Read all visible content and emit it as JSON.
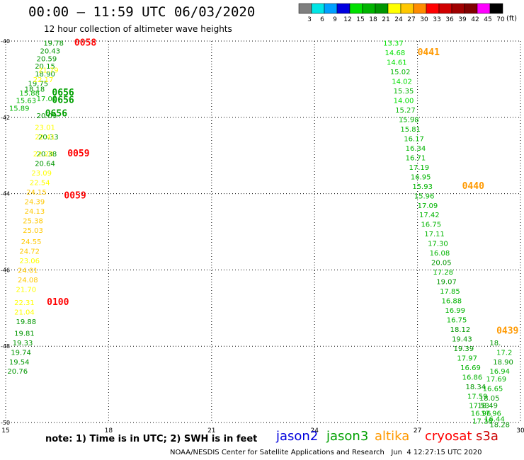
{
  "header": {
    "title": "00:00 – 11:59 UTC 06/03/2020",
    "subtitle": "12 hour collection of altimeter wave heights"
  },
  "scale": {
    "unit": "(ft)",
    "ticks": [
      "3",
      "6",
      "9",
      "12",
      "15",
      "18",
      "21",
      "24",
      "27",
      "30",
      "33",
      "36",
      "39",
      "42",
      "45",
      "70"
    ],
    "colors": [
      "#7f7f7f",
      "#00e5e5",
      "#00a0ff",
      "#0000e0",
      "#00e000",
      "#00b400",
      "#009600",
      "#ffff00",
      "#ffc800",
      "#ff8c00",
      "#ff0000",
      "#d00000",
      "#a00000",
      "#800000",
      "#ff00ff",
      "#000000"
    ]
  },
  "footer": {
    "note": "note: 1) Time is in UTC; 2) SWH is in feet",
    "credit": "NOAA/NESDIS Center for Satellite Applications and Research   Jun  4 12:27:15 UTC 2020"
  },
  "legend": [
    {
      "name": "jason2",
      "color": "#0000dd"
    },
    {
      "name": "jason3",
      "color": "#00a000"
    },
    {
      "name": "altika",
      "color": "#ff9900"
    },
    {
      "name": "cryosat",
      "color": "#ff0000"
    },
    {
      "name": "s3a",
      "color": "#cc0000"
    }
  ],
  "chart_data": {
    "type": "scatter",
    "xlim": [
      15,
      30
    ],
    "ylim": [
      -50,
      -40
    ],
    "x_ticks": [
      "15",
      "18",
      "21",
      "24",
      "27",
      "30"
    ],
    "x_tick_values": [
      15,
      18,
      21,
      24,
      27,
      30
    ],
    "y_ticks": [
      "-40",
      "-42",
      "-44",
      "-46",
      "-48",
      "-50"
    ],
    "y_tick_values": [
      -40,
      -42,
      -44,
      -46,
      -48,
      -50
    ],
    "grid": true,
    "series": [
      {
        "name": "jason3",
        "points": [
          {
            "x": 16.1,
            "y": -40.05,
            "label": "19.78"
          },
          {
            "x": 16.0,
            "y": -40.25,
            "label": "20.43"
          },
          {
            "x": 15.9,
            "y": -40.45,
            "label": "20.59"
          },
          {
            "x": 15.85,
            "y": -40.65,
            "label": "20.15"
          },
          {
            "x": 15.85,
            "y": -40.85,
            "label": "18.90"
          },
          {
            "x": 15.65,
            "y": -41.1,
            "label": "19.75"
          },
          {
            "x": 15.55,
            "y": -41.25,
            "label": "18.18"
          },
          {
            "x": 15.4,
            "y": -41.35,
            "label": "15.88"
          },
          {
            "x": 15.3,
            "y": -41.55,
            "label": "15.63"
          },
          {
            "x": 15.1,
            "y": -41.75,
            "label": "15.89"
          },
          {
            "x": 15.9,
            "y": -41.5,
            "label": "17.01"
          },
          {
            "x": 15.9,
            "y": -41.95,
            "label": "20.09"
          },
          {
            "x": 15.95,
            "y": -42.5,
            "label": "20.33"
          },
          {
            "x": 15.9,
            "y": -42.95,
            "label": "20.38"
          },
          {
            "x": 15.85,
            "y": -43.2,
            "label": "20.64"
          },
          {
            "x": 15.3,
            "y": -47.35,
            "label": "19.88"
          },
          {
            "x": 15.25,
            "y": -47.65,
            "label": "19.81"
          },
          {
            "x": 15.2,
            "y": -47.9,
            "label": "19.33"
          },
          {
            "x": 15.15,
            "y": -48.15,
            "label": "19.74"
          },
          {
            "x": 15.1,
            "y": -48.4,
            "label": "19.54"
          },
          {
            "x": 15.05,
            "y": -48.65,
            "label": "20.76"
          },
          {
            "x": 26.0,
            "y": -40.05,
            "label": "13.37"
          },
          {
            "x": 26.05,
            "y": -40.3,
            "label": "14.68"
          },
          {
            "x": 26.1,
            "y": -40.55,
            "label": "14.61"
          },
          {
            "x": 26.2,
            "y": -40.8,
            "label": "15.02"
          },
          {
            "x": 26.25,
            "y": -41.05,
            "label": "14.02"
          },
          {
            "x": 26.3,
            "y": -41.3,
            "label": "15.35"
          },
          {
            "x": 26.3,
            "y": -41.55,
            "label": "14.00"
          },
          {
            "x": 26.35,
            "y": -41.8,
            "label": "15.27"
          },
          {
            "x": 26.45,
            "y": -42.05,
            "label": "15.98"
          },
          {
            "x": 26.5,
            "y": -42.3,
            "label": "15.81"
          },
          {
            "x": 26.6,
            "y": -42.55,
            "label": "16.17"
          },
          {
            "x": 26.65,
            "y": -42.8,
            "label": "16.34"
          },
          {
            "x": 26.65,
            "y": -43.05,
            "label": "16.71"
          },
          {
            "x": 26.75,
            "y": -43.3,
            "label": "17.19"
          },
          {
            "x": 26.8,
            "y": -43.55,
            "label": "16.95"
          },
          {
            "x": 26.85,
            "y": -43.8,
            "label": "15.93"
          },
          {
            "x": 26.9,
            "y": -44.05,
            "label": "15.96"
          },
          {
            "x": 27.0,
            "y": -44.3,
            "label": "17.09"
          },
          {
            "x": 27.05,
            "y": -44.55,
            "label": "17.42"
          },
          {
            "x": 27.1,
            "y": -44.8,
            "label": "16.75"
          },
          {
            "x": 27.2,
            "y": -45.05,
            "label": "17.11"
          },
          {
            "x": 27.3,
            "y": -45.3,
            "label": "17.30"
          },
          {
            "x": 27.35,
            "y": -45.55,
            "label": "16.08"
          },
          {
            "x": 27.4,
            "y": -45.8,
            "label": "20.05"
          },
          {
            "x": 27.45,
            "y": -46.05,
            "label": "17.28"
          },
          {
            "x": 27.55,
            "y": -46.3,
            "label": "19.07"
          },
          {
            "x": 27.65,
            "y": -46.55,
            "label": "17.85"
          },
          {
            "x": 27.7,
            "y": -46.8,
            "label": "16.88"
          },
          {
            "x": 27.8,
            "y": -47.05,
            "label": "16.99"
          },
          {
            "x": 27.85,
            "y": -47.3,
            "label": "16.75"
          },
          {
            "x": 27.95,
            "y": -47.55,
            "label": "18.12"
          },
          {
            "x": 28.0,
            "y": -47.8,
            "label": "19.43"
          },
          {
            "x": 28.05,
            "y": -48.05,
            "label": "19.39"
          },
          {
            "x": 28.15,
            "y": -48.3,
            "label": "17.97"
          },
          {
            "x": 28.25,
            "y": -48.55,
            "label": "16.69"
          },
          {
            "x": 28.3,
            "y": -48.8,
            "label": "16.86"
          },
          {
            "x": 28.4,
            "y": -49.05,
            "label": "18.34"
          },
          {
            "x": 28.45,
            "y": -49.3,
            "label": "17.59"
          },
          {
            "x": 28.5,
            "y": -49.55,
            "label": "17.53"
          },
          {
            "x": 28.55,
            "y": -49.75,
            "label": "16.96"
          },
          {
            "x": 28.6,
            "y": -49.95,
            "label": "17.18"
          },
          {
            "x": 29.1,
            "y": -47.9,
            "label": "18."
          },
          {
            "x": 29.3,
            "y": -48.15,
            "label": "17.2"
          },
          {
            "x": 29.2,
            "y": -48.4,
            "label": "18.90"
          },
          {
            "x": 29.1,
            "y": -48.65,
            "label": "16.94"
          },
          {
            "x": 29.0,
            "y": -48.85,
            "label": "17.69"
          },
          {
            "x": 28.9,
            "y": -49.1,
            "label": "16.65"
          },
          {
            "x": 28.8,
            "y": -49.35,
            "label": "18.05"
          },
          {
            "x": 28.75,
            "y": -49.55,
            "label": "18.49"
          },
          {
            "x": 28.85,
            "y": -49.75,
            "label": "17.96"
          },
          {
            "x": 28.95,
            "y": -49.9,
            "label": "16.44"
          },
          {
            "x": 29.1,
            "y": -50.05,
            "label": "18.28"
          }
        ]
      },
      {
        "name": "altika",
        "points": [
          {
            "x": 15.95,
            "y": -40.75,
            "label": "21.79"
          },
          {
            "x": 15.8,
            "y": -41.0,
            "label": "22.17"
          },
          {
            "x": 15.85,
            "y": -42.25,
            "label": "23.01"
          },
          {
            "x": 15.85,
            "y": -42.5,
            "label": "22.41"
          },
          {
            "x": 15.8,
            "y": -42.95,
            "label": "22.20"
          },
          {
            "x": 15.75,
            "y": -43.45,
            "label": "23.09"
          },
          {
            "x": 15.7,
            "y": -43.7,
            "label": "22.54"
          },
          {
            "x": 15.6,
            "y": -43.95,
            "label": "24.15"
          },
          {
            "x": 15.55,
            "y": -44.2,
            "label": "24.39"
          },
          {
            "x": 15.55,
            "y": -44.45,
            "label": "24.13"
          },
          {
            "x": 15.5,
            "y": -44.7,
            "label": "25.38"
          },
          {
            "x": 15.5,
            "y": -44.95,
            "label": "25.03"
          },
          {
            "x": 15.45,
            "y": -45.25,
            "label": "24.55"
          },
          {
            "x": 15.4,
            "y": -45.5,
            "label": "24.72"
          },
          {
            "x": 15.4,
            "y": -45.75,
            "label": "23.06"
          },
          {
            "x": 15.35,
            "y": -46.0,
            "label": "24.01"
          },
          {
            "x": 15.35,
            "y": -46.25,
            "label": "24.08"
          },
          {
            "x": 15.3,
            "y": -46.5,
            "label": "21.70"
          },
          {
            "x": 15.25,
            "y": -46.85,
            "label": "22.31"
          },
          {
            "x": 15.25,
            "y": -47.1,
            "label": "21.04"
          },
          {
            "x": 27.0,
            "y": -40.3,
            "label": "0441"
          },
          {
            "x": 28.3,
            "y": -43.8,
            "label": "0440"
          },
          {
            "x": 29.3,
            "y": -47.6,
            "label": "0439"
          }
        ]
      },
      {
        "name": "cryosat",
        "points": [
          {
            "x": 17.0,
            "y": -40.05,
            "label": "0058"
          },
          {
            "x": 16.8,
            "y": -42.95,
            "label": "0059"
          },
          {
            "x": 16.7,
            "y": -44.05,
            "label": "0059"
          },
          {
            "x": 16.2,
            "y": -46.85,
            "label": "0100"
          }
        ]
      },
      {
        "name": "jason3 time",
        "points": [
          {
            "x": 16.35,
            "y": -41.35,
            "label": "0656"
          },
          {
            "x": 16.35,
            "y": -41.55,
            "label": "0656"
          },
          {
            "x": 16.15,
            "y": -41.9,
            "label": "0656"
          }
        ]
      }
    ]
  }
}
